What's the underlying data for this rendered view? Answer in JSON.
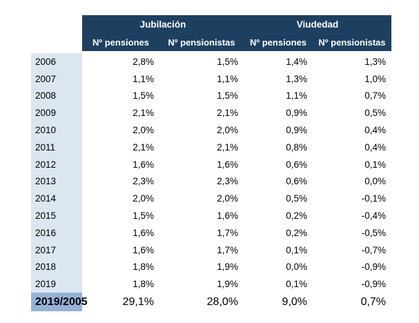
{
  "colors": {
    "header_bg": "#1e4060",
    "header_text": "#ffffff",
    "year_col_bg": "#dce6f1",
    "summary_label_bg": "#95b3d7",
    "body_text": "#000000",
    "page_bg": "#ffffff"
  },
  "table": {
    "groups": [
      {
        "label": "Jubilación",
        "subcolumns": [
          "Nº pensiones",
          "Nº pensionistas"
        ]
      },
      {
        "label": "Viudedad",
        "subcolumns": [
          "Nº pensiones",
          "Nº pensionistas"
        ]
      }
    ],
    "rows": [
      {
        "year": "2006",
        "values": [
          "2,8%",
          "1,5%",
          "1,4%",
          "1,3%"
        ]
      },
      {
        "year": "2007",
        "values": [
          "1,1%",
          "1,1%",
          "1,3%",
          "1,0%"
        ]
      },
      {
        "year": "2008",
        "values": [
          "1,5%",
          "1,5%",
          "1,1%",
          "0,7%"
        ]
      },
      {
        "year": "2009",
        "values": [
          "2,1%",
          "2,1%",
          "0,9%",
          "0,5%"
        ]
      },
      {
        "year": "2010",
        "values": [
          "2,0%",
          "2,0%",
          "0,9%",
          "0,4%"
        ]
      },
      {
        "year": "2011",
        "values": [
          "2,1%",
          "2,1%",
          "0,8%",
          "0,4%"
        ]
      },
      {
        "year": "2012",
        "values": [
          "1,6%",
          "1,6%",
          "0,6%",
          "0,1%"
        ]
      },
      {
        "year": "2013",
        "values": [
          "2,3%",
          "2,3%",
          "0,6%",
          "0,0%"
        ]
      },
      {
        "year": "2014",
        "values": [
          "2,0%",
          "2,0%",
          "0,5%",
          "-0,1%"
        ]
      },
      {
        "year": "2015",
        "values": [
          "1,5%",
          "1,6%",
          "0,2%",
          "-0,4%"
        ]
      },
      {
        "year": "2016",
        "values": [
          "1,6%",
          "1,7%",
          "0,2%",
          "-0,5%"
        ]
      },
      {
        "year": "2017",
        "values": [
          "1,6%",
          "1,7%",
          "0,1%",
          "-0,7%"
        ]
      },
      {
        "year": "2018",
        "values": [
          "1,8%",
          "1,9%",
          "0,0%",
          "-0,9%"
        ]
      },
      {
        "year": "2019",
        "values": [
          "1,8%",
          "1,9%",
          "0,1%",
          "-0,9%"
        ]
      }
    ],
    "summary": {
      "label": "2019/2005",
      "values": [
        "29,1%",
        "28,0%",
        "9,0%",
        "0,7%"
      ]
    }
  },
  "chart_data": {
    "type": "table",
    "title": "",
    "column_groups": [
      "Jubilación",
      "Viudedad"
    ],
    "columns": [
      "Jubilación Nº pensiones",
      "Jubilación Nº pensionistas",
      "Viudedad Nº pensiones",
      "Viudedad Nº pensionistas"
    ],
    "row_labels": [
      "2006",
      "2007",
      "2008",
      "2009",
      "2010",
      "2011",
      "2012",
      "2013",
      "2014",
      "2015",
      "2016",
      "2017",
      "2018",
      "2019",
      "2019/2005"
    ],
    "values_percent": [
      [
        2.8,
        1.5,
        1.4,
        1.3
      ],
      [
        1.1,
        1.1,
        1.3,
        1.0
      ],
      [
        1.5,
        1.5,
        1.1,
        0.7
      ],
      [
        2.1,
        2.1,
        0.9,
        0.5
      ],
      [
        2.0,
        2.0,
        0.9,
        0.4
      ],
      [
        2.1,
        2.1,
        0.8,
        0.4
      ],
      [
        1.6,
        1.6,
        0.6,
        0.1
      ],
      [
        2.3,
        2.3,
        0.6,
        0.0
      ],
      [
        2.0,
        2.0,
        0.5,
        -0.1
      ],
      [
        1.5,
        1.6,
        0.2,
        -0.4
      ],
      [
        1.6,
        1.7,
        0.2,
        -0.5
      ],
      [
        1.6,
        1.7,
        0.1,
        -0.7
      ],
      [
        1.8,
        1.9,
        0.0,
        -0.9
      ],
      [
        1.8,
        1.9,
        0.1,
        -0.9
      ],
      [
        29.1,
        28.0,
        9.0,
        0.7
      ]
    ],
    "unit": "%",
    "decimal_separator": ","
  }
}
